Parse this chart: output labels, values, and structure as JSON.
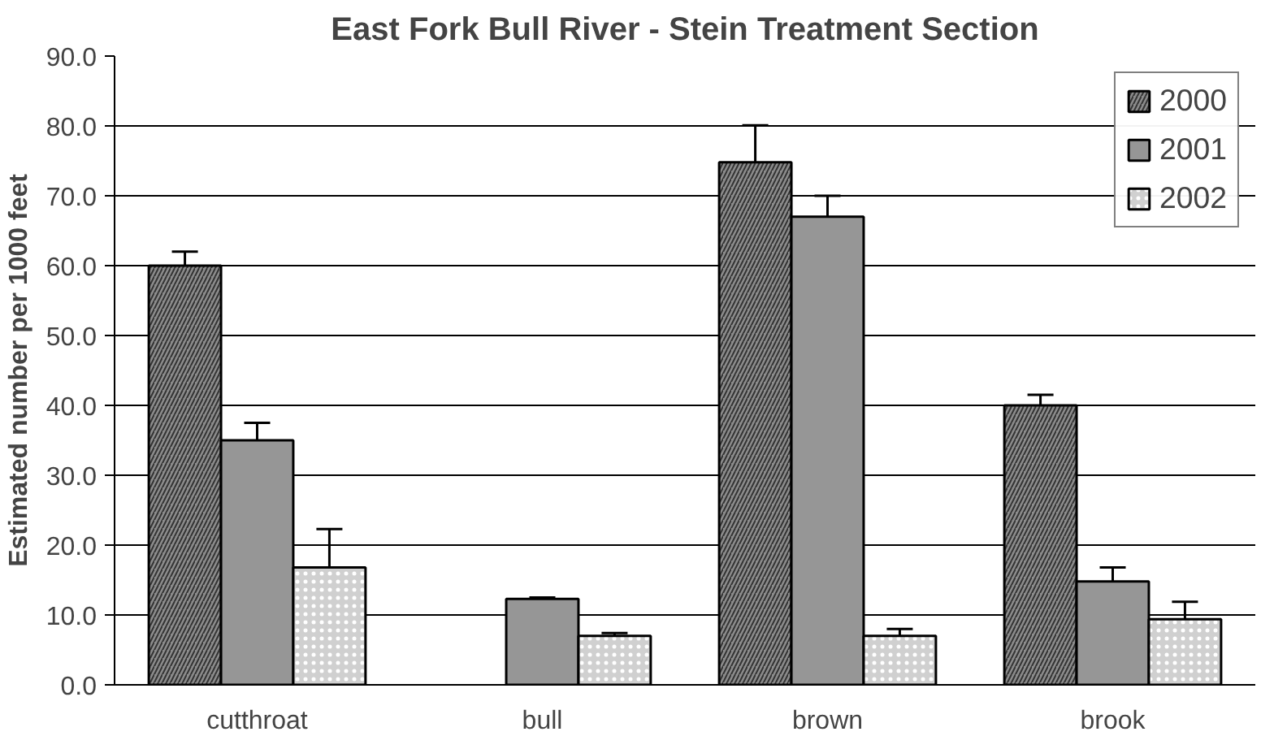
{
  "chart_data": {
    "type": "bar",
    "title": "East Fork Bull River - Stein Treatment Section",
    "ylabel": "Estimated number per 1000 feet",
    "categories": [
      "cutthroat",
      "bull",
      "brown",
      "brook"
    ],
    "series": [
      {
        "name": "2000",
        "color": "#8c8c8c",
        "values": [
          60.0,
          null,
          74.8,
          40.0
        ],
        "errors": [
          2.0,
          null,
          5.3,
          1.5
        ]
      },
      {
        "name": "2001",
        "color": "#969696",
        "values": [
          35.0,
          12.3,
          67.0,
          14.8
        ],
        "errors": [
          2.5,
          0.2,
          3.0,
          2.0
        ]
      },
      {
        "name": "2002",
        "color": "#d0d0d0",
        "values": [
          16.8,
          7.0,
          7.0,
          9.4
        ],
        "errors": [
          5.5,
          0.4,
          1.0,
          2.5
        ]
      }
    ],
    "ylim": [
      0,
      90
    ],
    "yticks": [
      {
        "value": 0,
        "label": "0.0"
      },
      {
        "value": 10,
        "label": "10.0"
      },
      {
        "value": 20,
        "label": "20.0"
      },
      {
        "value": 30,
        "label": "30.0"
      },
      {
        "value": 40,
        "label": "40.0"
      },
      {
        "value": 50,
        "label": "50.0"
      },
      {
        "value": 60,
        "label": "60.0"
      },
      {
        "value": 70,
        "label": "70.0"
      },
      {
        "value": 80,
        "label": "80.0"
      },
      {
        "value": 90,
        "label": "90.0"
      }
    ],
    "grid": "y",
    "legend": "top right"
  }
}
